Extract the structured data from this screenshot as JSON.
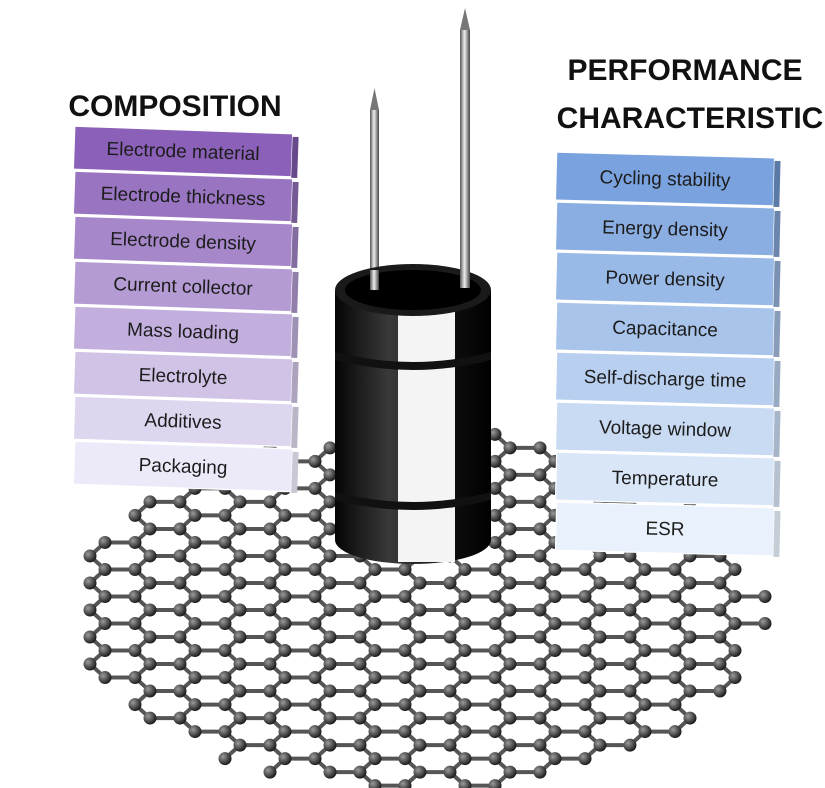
{
  "composition": {
    "title": "COMPOSITION",
    "items": [
      "Electrode material",
      "Electrode thickness",
      "Electrode density",
      "Current collector",
      "Mass loading",
      "Electrolyte",
      "Additives",
      "Packaging"
    ]
  },
  "performance": {
    "title": [
      "PERFORMANCE",
      "CHARACTERISTIC"
    ],
    "items": [
      "Cycling stability",
      "Energy density",
      "Power density",
      "Capacitance",
      "Self-discharge time",
      "Voltage window",
      "Temperature",
      "ESR"
    ]
  }
}
